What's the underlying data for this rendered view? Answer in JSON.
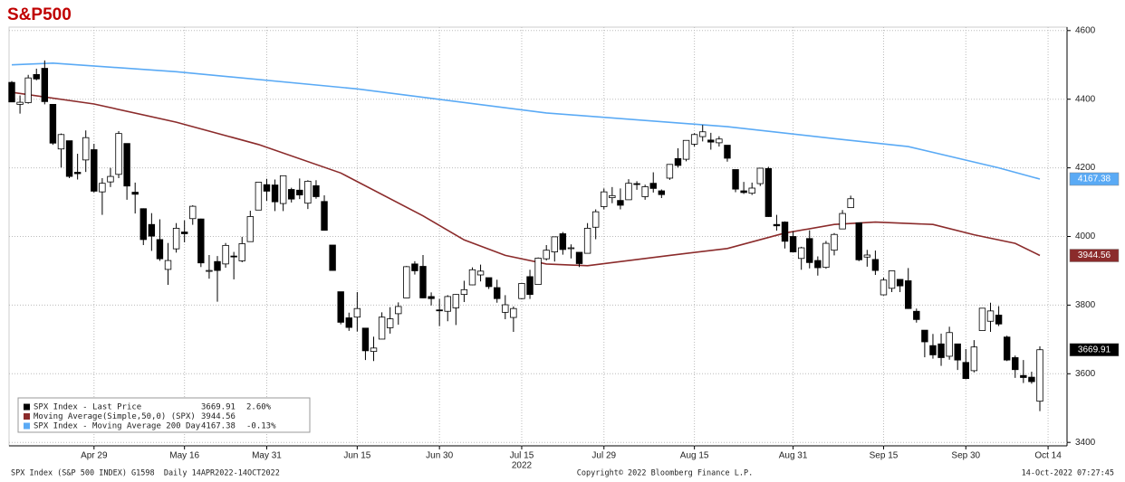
{
  "chart_data": {
    "type": "candlestick",
    "title": "S&P500",
    "categories": [
      null,
      null,
      null,
      null,
      null,
      null,
      null,
      null,
      null,
      null,
      "Apr 29",
      null,
      null,
      null,
      null,
      null,
      null,
      null,
      null,
      null,
      null,
      "May 16",
      null,
      null,
      null,
      null,
      null,
      null,
      null,
      null,
      null,
      "May 31",
      null,
      null,
      null,
      null,
      null,
      null,
      null,
      null,
      null,
      null,
      "Jun 15",
      null,
      null,
      null,
      null,
      null,
      null,
      null,
      null,
      null,
      "Jun 30",
      null,
      null,
      null,
      null,
      null,
      null,
      null,
      null,
      null,
      "Jul 15",
      null,
      null,
      null,
      null,
      null,
      null,
      null,
      null,
      null,
      "Jul 29",
      null,
      null,
      null,
      null,
      null,
      null,
      null,
      null,
      null,
      null,
      "Aug 15",
      null,
      null,
      null,
      null,
      null,
      null,
      null,
      null,
      null,
      null,
      null,
      "Aug 31",
      null,
      null,
      null,
      null,
      null,
      null,
      null,
      null,
      null,
      null,
      "Sep 15",
      null,
      null,
      null,
      null,
      null,
      null,
      null,
      null,
      null,
      "Sep 30",
      null,
      null,
      null,
      null,
      null,
      null,
      null,
      null,
      null,
      "Oct 14"
    ],
    "year_label": "2022",
    "year_label_at": 62,
    "ohlc": {
      "name": "SPX Index - Last Price",
      "up_color": "#ffffff",
      "down_color": "#000000",
      "open": [
        4449,
        4385,
        4390,
        4472,
        4490,
        4385,
        4255,
        4279,
        4187,
        4223,
        4253,
        4130,
        4159,
        4181,
        4271,
        4129,
        4081,
        4035,
        3991,
        3904,
        3964,
        4013,
        4052,
        4051,
        3900,
        3927,
        3920,
        3943,
        3929,
        3985,
        4077,
        4151,
        4150,
        4096,
        4137,
        4135,
        4097,
        4148,
        4102,
        3975,
        3839,
        3763,
        3765,
        3733,
        3665,
        3701,
        3734,
        3775,
        3821,
        3920,
        3913,
        3825,
        3786,
        3782,
        3792,
        3831,
        3859,
        3888,
        3880,
        3851,
        3779,
        3764,
        3819,
        3883,
        3860,
        3935,
        3955,
        4008,
        3966,
        3954,
        3951,
        4027,
        4087,
        4113,
        4105,
        4107,
        4154,
        4116,
        4155,
        4133,
        4170,
        4227,
        4225,
        4269,
        4291,
        4281,
        4273,
        4266,
        4195,
        4133,
        4126,
        4154,
        4198,
        4035,
        4042,
        4000,
        3936,
        3994,
        3930,
        3910,
        3960,
        4022,
        4084,
        4040,
        3940,
        3933,
        3830,
        3849,
        3875,
        3871,
        3782,
        3727,
        3682,
        3687,
        3651,
        3687,
        3633,
        3609,
        3726,
        3753,
        3771,
        3707,
        3647,
        3595,
        3590,
        3520,
        null
      ],
      "high": [
        4453,
        4411,
        4471,
        4489,
        4513,
        4386,
        4300,
        4279,
        4241,
        4309,
        4270,
        4170,
        4200,
        4307,
        4271,
        4157,
        4082,
        4068,
        4050,
        3981,
        4039,
        4047,
        4091,
        4052,
        3946,
        3943,
        3981,
        3955,
        3999,
        4075,
        4158,
        4168,
        4166,
        4177,
        4142,
        4169,
        4164,
        4164,
        4120,
        3975,
        3839,
        3778,
        3838,
        3733,
        3708,
        3779,
        3794,
        3808,
        3914,
        3928,
        3946,
        3837,
        3818,
        3829,
        3832,
        3871,
        3910,
        3918,
        3880,
        3874,
        3829,
        3796,
        3863,
        3903,
        3939,
        3975,
        3999,
        4013,
        3977,
        3954,
        4039,
        4079,
        4140,
        4144,
        4140,
        4167,
        4161,
        4151,
        4187,
        4137,
        4211,
        4257,
        4280,
        4301,
        4325,
        4302,
        4292,
        4266,
        4195,
        4159,
        4157,
        4200,
        4203,
        4063,
        4044,
        4015,
        3970,
        4018,
        3942,
        3987,
        4010,
        4077,
        4119,
        4040,
        3961,
        3959,
        3880,
        3900,
        3876,
        3908,
        3790,
        3727,
        3716,
        3717,
        3737,
        3687,
        3672,
        3698,
        3791,
        3807,
        3797,
        3711,
        3653,
        3640,
        3606,
        3680,
        null
      ],
      "low": [
        4392,
        4358,
        4387,
        4455,
        4385,
        4267,
        4201,
        4170,
        4166,
        4188,
        4128,
        4063,
        4144,
        4170,
        4107,
        4067,
        3975,
        3958,
        3929,
        3859,
        3953,
        3983,
        4034,
        3911,
        3877,
        3810,
        3909,
        3875,
        3925,
        3985,
        4077,
        4104,
        4074,
        4074,
        4099,
        4109,
        4080,
        4110,
        4017,
        3900,
        3744,
        3725,
        3723,
        3640,
        3637,
        3701,
        3717,
        3743,
        3821,
        3889,
        3820,
        3799,
        3739,
        3753,
        3742,
        3809,
        3858,
        3869,
        3847,
        3807,
        3759,
        3722,
        3817,
        3818,
        3860,
        3930,
        3927,
        3947,
        3936,
        3911,
        3951,
        3992,
        4079,
        4097,
        4079,
        4107,
        4136,
        4107,
        4128,
        4112,
        4165,
        4201,
        4219,
        4262,
        4277,
        4253,
        4262,
        4218,
        4129,
        4124,
        4121,
        4147,
        4057,
        4017,
        3965,
        3954,
        3903,
        3907,
        3886,
        3906,
        3945,
        4022,
        4083,
        3928,
        3912,
        3888,
        3828,
        3838,
        3838,
        3789,
        3749,
        3648,
        3644,
        3623,
        3641,
        3611,
        3584,
        3604,
        3726,
        3722,
        3739,
        3637,
        3588,
        3573,
        3571,
        3491,
        null
      ],
      "close": [
        4392,
        4391,
        4462,
        4459,
        4393,
        4272,
        4297,
        4175,
        4183,
        4288,
        4132,
        4155,
        4175,
        4300,
        4147,
        4123,
        3991,
        4001,
        3935,
        3930,
        4024,
        4008,
        4088,
        3923,
        3901,
        3901,
        3974,
        3941,
        3979,
        4058,
        4158,
        4132,
        4101,
        4177,
        4109,
        4121,
        4161,
        4116,
        4018,
        3901,
        3750,
        3735,
        3790,
        3667,
        3675,
        3765,
        3760,
        3796,
        3912,
        3900,
        3821,
        3819,
        3785,
        3825,
        3831,
        3845,
        3903,
        3899,
        3854,
        3819,
        3801,
        3790,
        3863,
        3831,
        3937,
        3960,
        3999,
        3962,
        3967,
        3921,
        4024,
        4072,
        4130,
        4119,
        4091,
        4155,
        4152,
        4145,
        4140,
        4122,
        4210,
        4207,
        4280,
        4297,
        4305,
        4275,
        4284,
        4228,
        4138,
        4128,
        4141,
        4199,
        4058,
        4031,
        3986,
        3955,
        3967,
        3924,
        3909,
        3980,
        4006,
        4067,
        4110,
        3932,
        3946,
        3901,
        3873,
        3900,
        3856,
        3790,
        3758,
        3693,
        3655,
        3647,
        3720,
        3640,
        3586,
        3678,
        3791,
        3783,
        3745,
        3640,
        3612,
        3589,
        3577,
        3670,
        null
      ],
      "last": 3669.91,
      "change": "2.60%",
      "label_bg": "#000000"
    },
    "series": [
      {
        "name": "Moving Average(Simple,50,0) (SPX)",
        "color": "#8b2b2b",
        "x": [
          0,
          10,
          20,
          30,
          40,
          50,
          55,
          60,
          65,
          70,
          80,
          87,
          94,
          100,
          105,
          112,
          117,
          122,
          125
        ],
        "values": [
          4420,
          4386,
          4333,
          4268,
          4185,
          4060,
          3990,
          3945,
          3920,
          3915,
          3945,
          3965,
          4010,
          4035,
          4042,
          4035,
          4005,
          3980,
          3944.56
        ],
        "last": 3944.56
      },
      {
        "name": "SPX Index - Moving Average 200 Day",
        "color": "#5aaaf5",
        "x": [
          0,
          5,
          20,
          42,
          65,
          87,
          100,
          109,
          120,
          125
        ],
        "values": [
          4500,
          4505,
          4480,
          4430,
          4360,
          4320,
          4285,
          4262,
          4200,
          4167.38
        ],
        "last": 4167.38,
        "change": "-0.13%"
      }
    ],
    "ylim": [
      3390,
      4610
    ],
    "yticks": [
      3400,
      3600,
      3800,
      4000,
      4200,
      4400,
      4600
    ],
    "grid": true,
    "legend": "bottom-left",
    "footer_left": "SPX Index (S&P 500 INDEX) G1598  Daily 14APR2022-14OCT2022",
    "footer_center": "Copyright© 2022 Bloomberg Finance L.P.",
    "footer_right": "14-Oct-2022 07:27:45"
  }
}
